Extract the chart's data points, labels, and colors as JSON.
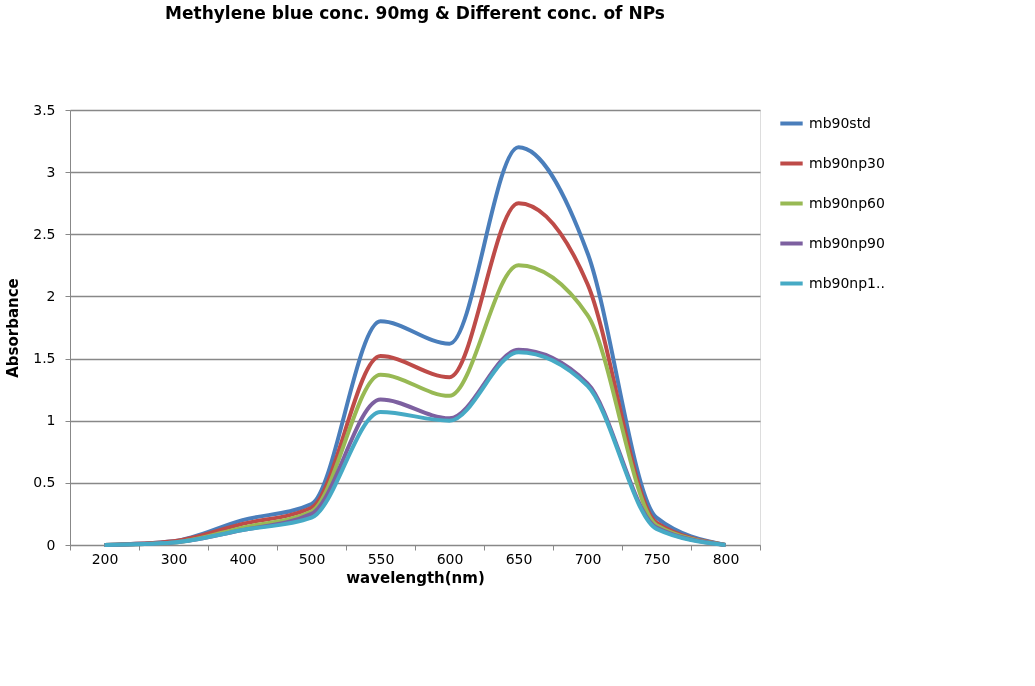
{
  "chart_data": {
    "type": "line",
    "title": "Methylene blue conc.  90mg & Different conc. of NPs",
    "xlabel": "wavelength(nm)",
    "ylabel": "Absorbance",
    "categories": [
      "200",
      "300",
      "400",
      "500",
      "550",
      "600",
      "650",
      "700",
      "750",
      "800"
    ],
    "series": [
      {
        "name": "mb90std",
        "color": "#4a7ebb",
        "values": [
          0,
          0.03,
          0.2,
          0.33,
          1.8,
          1.62,
          3.2,
          2.35,
          0.22,
          0
        ]
      },
      {
        "name": "mb90np30",
        "color": "#be4b48",
        "values": [
          0,
          0.03,
          0.17,
          0.3,
          1.52,
          1.35,
          2.75,
          2.1,
          0.18,
          0
        ]
      },
      {
        "name": "mb90np60",
        "color": "#98b954",
        "values": [
          0,
          0.02,
          0.14,
          0.27,
          1.37,
          1.2,
          2.25,
          1.85,
          0.16,
          0
        ]
      },
      {
        "name": "mb90np90",
        "color": "#7d60a0",
        "values": [
          0,
          0.02,
          0.12,
          0.25,
          1.17,
          1.02,
          1.57,
          1.3,
          0.14,
          0
        ]
      },
      {
        "name": "mb90np1..",
        "color": "#46aac5",
        "values": [
          0,
          0.02,
          0.12,
          0.22,
          1.07,
          1.0,
          1.55,
          1.28,
          0.13,
          0
        ]
      }
    ],
    "ylim": [
      0,
      3.5
    ],
    "yticks": [
      0,
      0.5,
      1,
      1.5,
      2,
      2.5,
      3,
      3.5
    ],
    "grid": "y",
    "legend": "right",
    "marker": "none",
    "line_style": "solid"
  }
}
